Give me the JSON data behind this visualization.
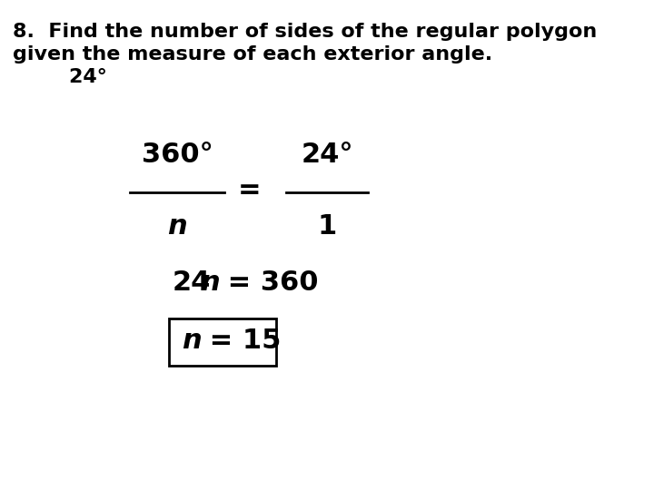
{
  "background_color": "#ffffff",
  "line1": "8.  Find the number of sides of the regular polygon",
  "line2": "given the measure of each exterior angle.",
  "line3": "        24°",
  "frac_num_left": "360°",
  "frac_den_left": "n",
  "frac_num_right": "24°",
  "frac_den_right": "1",
  "text_color": "#000000",
  "title_fontsize": 16,
  "body_fontsize": 22
}
